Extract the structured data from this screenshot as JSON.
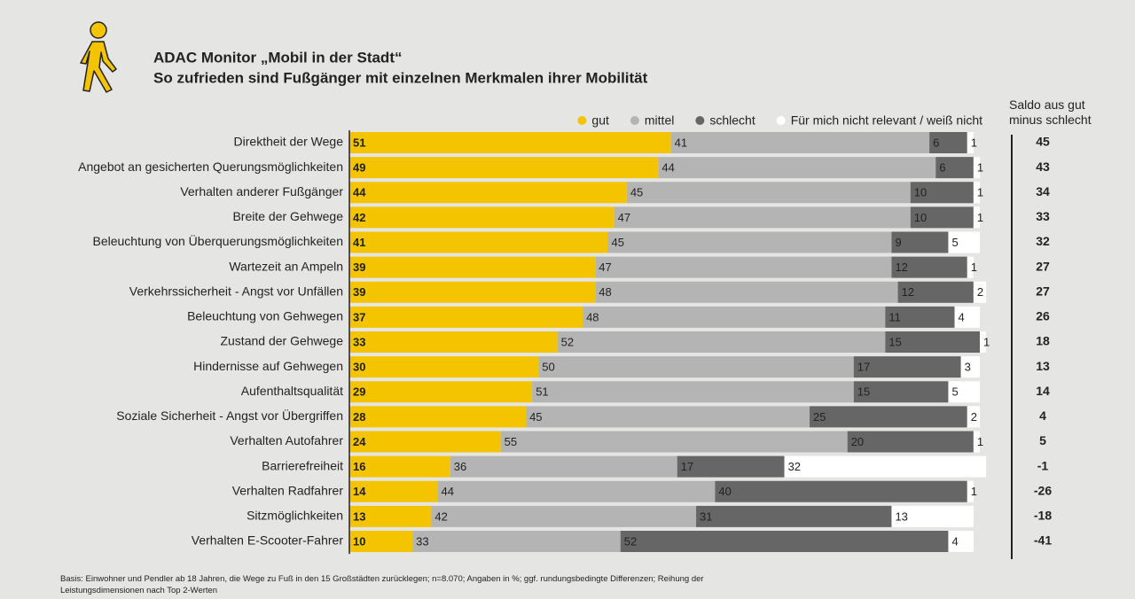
{
  "chart_data": {
    "type": "bar",
    "title": "ADAC Monitor „Mobil in der Stadt“",
    "subtitle": "So zufrieden sind Fußgänger mit einzelnen Merkmalen ihrer Mobilität",
    "categories": [
      "Direktheit der Wege",
      "Angebot an gesicherten Querungsmöglichkeiten",
      "Verhalten anderer Fußgänger",
      "Breite der Gehwege",
      "Beleuchtung von Überquerungsmöglichkeiten",
      "Wartezeit an Ampeln",
      "Verkehrssicherheit - Angst vor Unfällen",
      "Beleuchtung von Gehwegen",
      "Zustand der Gehwege",
      "Hindernisse auf Gehwegen",
      "Aufenthaltsqualität",
      "Soziale Sicherheit - Angst vor Übergriffen",
      "Verhalten Autofahrer",
      "Barrierefreiheit",
      "Verhalten Radfahrer",
      "Sitzmöglichkeiten",
      "Verhalten E-Scooter-Fahrer"
    ],
    "series": [
      {
        "name": "gut",
        "color": "#f5c400",
        "values": [
          51,
          49,
          44,
          42,
          41,
          39,
          39,
          37,
          33,
          30,
          29,
          28,
          24,
          16,
          14,
          13,
          10
        ]
      },
      {
        "name": "mittel",
        "color": "#b4b4b4",
        "values": [
          41,
          44,
          45,
          47,
          45,
          47,
          48,
          48,
          52,
          50,
          51,
          45,
          55,
          36,
          44,
          42,
          33
        ]
      },
      {
        "name": "schlecht",
        "color": "#666666",
        "values": [
          6,
          6,
          10,
          10,
          9,
          12,
          12,
          11,
          15,
          17,
          15,
          25,
          20,
          17,
          40,
          31,
          52
        ]
      },
      {
        "name": "Für mich nicht relevant / weiß nicht",
        "color": "#ffffff",
        "values": [
          1,
          1,
          1,
          1,
          5,
          1,
          2,
          4,
          1,
          3,
          5,
          2,
          1,
          32,
          1,
          13,
          4
        ]
      }
    ],
    "xlim": [
      0,
      100
    ],
    "saldo_title": "Saldo aus gut minus schlecht",
    "saldo": [
      45,
      43,
      34,
      33,
      32,
      27,
      27,
      26,
      18,
      13,
      14,
      4,
      5,
      -1,
      -26,
      -18,
      -41
    ],
    "footnote": "Basis: Einwohner und Pendler ab 18 Jahren, die Wege zu Fuß in den 15 Großstädten zurücklegen; n=8.070; Angaben in %; ggf. rundungsbedingte Differenzen; Reihung der Leistungsdimensionen nach Top 2-Werten"
  }
}
